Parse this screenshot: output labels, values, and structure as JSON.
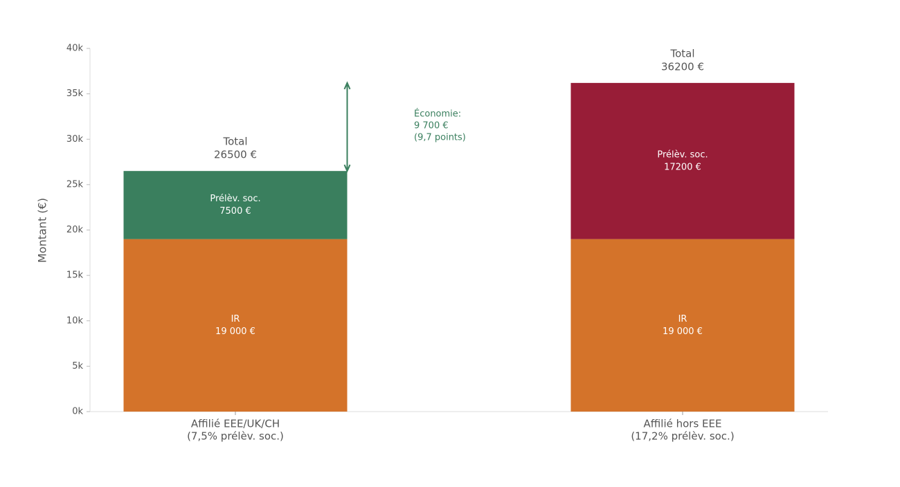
{
  "chart_data": {
    "type": "stacked-bar",
    "ylabel": "Montant (€)",
    "categories": [
      [
        "Affilié EEE/UK/CH",
        "(7,5% prélèv. soc.)"
      ],
      [
        "Affilié hors EEE",
        "(17,2% prélèv. soc.)"
      ]
    ],
    "series": [
      {
        "name": "IR",
        "colors": [
          "#d4732a",
          "#d4732a"
        ],
        "values": [
          19000,
          19000
        ],
        "value_labels": [
          "19 000 €",
          "19 000 €"
        ]
      },
      {
        "name": "Prélèv. soc.",
        "colors": [
          "#3a7f5e",
          "#981d37"
        ],
        "values": [
          7500,
          17200
        ],
        "value_labels": [
          "7500 €",
          "17200 €"
        ]
      }
    ],
    "total_label": "Total",
    "totals": [
      26500,
      36200
    ],
    "total_labels": [
      "26500 €",
      "36200 €"
    ],
    "annotation": {
      "color": "#3a7f5e",
      "lines": [
        "Économie:",
        "9 700 €",
        "(9,7 points)"
      ]
    },
    "ylim": [
      0,
      40000
    ],
    "yticks": [
      {
        "value": 0,
        "label": "0k"
      },
      {
        "value": 5000,
        "label": "5k"
      },
      {
        "value": 10000,
        "label": "10k"
      },
      {
        "value": 15000,
        "label": "15k"
      },
      {
        "value": 20000,
        "label": "20k"
      },
      {
        "value": 25000,
        "label": "25k"
      },
      {
        "value": 30000,
        "label": "30k"
      },
      {
        "value": 35000,
        "label": "35k"
      },
      {
        "value": 40000,
        "label": "40k"
      }
    ]
  }
}
